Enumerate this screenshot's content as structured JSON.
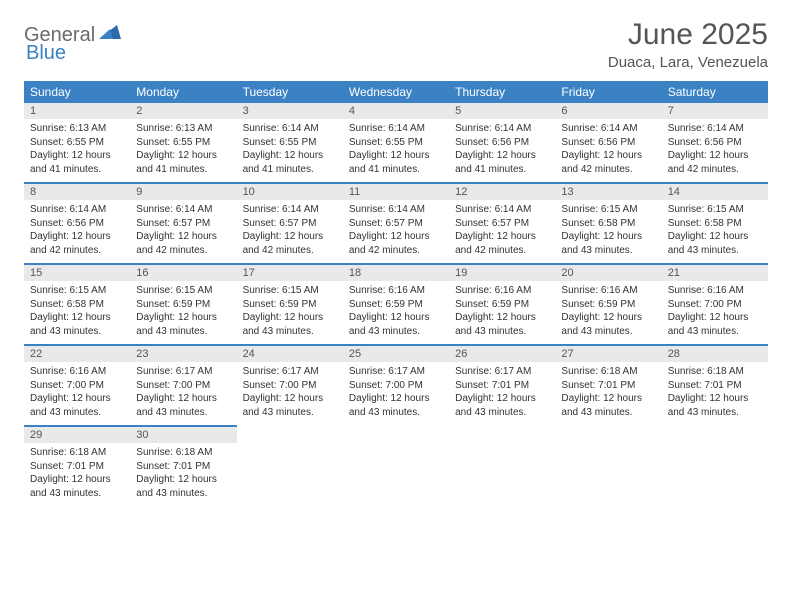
{
  "logo": {
    "text1": "General",
    "text2": "Blue"
  },
  "title": "June 2025",
  "location": "Duaca, Lara, Venezuela",
  "colors": {
    "header_bg": "#3b82c4",
    "header_text": "#ffffff",
    "daynum_bg": "#e9e9e9",
    "border": "#3b82c4",
    "title_color": "#555555",
    "body_text": "#333333"
  },
  "weekdays": [
    "Sunday",
    "Monday",
    "Tuesday",
    "Wednesday",
    "Thursday",
    "Friday",
    "Saturday"
  ],
  "weeks": [
    [
      {
        "n": "1",
        "sr": "Sunrise: 6:13 AM",
        "ss": "Sunset: 6:55 PM",
        "d1": "Daylight: 12 hours",
        "d2": "and 41 minutes."
      },
      {
        "n": "2",
        "sr": "Sunrise: 6:13 AM",
        "ss": "Sunset: 6:55 PM",
        "d1": "Daylight: 12 hours",
        "d2": "and 41 minutes."
      },
      {
        "n": "3",
        "sr": "Sunrise: 6:14 AM",
        "ss": "Sunset: 6:55 PM",
        "d1": "Daylight: 12 hours",
        "d2": "and 41 minutes."
      },
      {
        "n": "4",
        "sr": "Sunrise: 6:14 AM",
        "ss": "Sunset: 6:55 PM",
        "d1": "Daylight: 12 hours",
        "d2": "and 41 minutes."
      },
      {
        "n": "5",
        "sr": "Sunrise: 6:14 AM",
        "ss": "Sunset: 6:56 PM",
        "d1": "Daylight: 12 hours",
        "d2": "and 41 minutes."
      },
      {
        "n": "6",
        "sr": "Sunrise: 6:14 AM",
        "ss": "Sunset: 6:56 PM",
        "d1": "Daylight: 12 hours",
        "d2": "and 42 minutes."
      },
      {
        "n": "7",
        "sr": "Sunrise: 6:14 AM",
        "ss": "Sunset: 6:56 PM",
        "d1": "Daylight: 12 hours",
        "d2": "and 42 minutes."
      }
    ],
    [
      {
        "n": "8",
        "sr": "Sunrise: 6:14 AM",
        "ss": "Sunset: 6:56 PM",
        "d1": "Daylight: 12 hours",
        "d2": "and 42 minutes."
      },
      {
        "n": "9",
        "sr": "Sunrise: 6:14 AM",
        "ss": "Sunset: 6:57 PM",
        "d1": "Daylight: 12 hours",
        "d2": "and 42 minutes."
      },
      {
        "n": "10",
        "sr": "Sunrise: 6:14 AM",
        "ss": "Sunset: 6:57 PM",
        "d1": "Daylight: 12 hours",
        "d2": "and 42 minutes."
      },
      {
        "n": "11",
        "sr": "Sunrise: 6:14 AM",
        "ss": "Sunset: 6:57 PM",
        "d1": "Daylight: 12 hours",
        "d2": "and 42 minutes."
      },
      {
        "n": "12",
        "sr": "Sunrise: 6:14 AM",
        "ss": "Sunset: 6:57 PM",
        "d1": "Daylight: 12 hours",
        "d2": "and 42 minutes."
      },
      {
        "n": "13",
        "sr": "Sunrise: 6:15 AM",
        "ss": "Sunset: 6:58 PM",
        "d1": "Daylight: 12 hours",
        "d2": "and 43 minutes."
      },
      {
        "n": "14",
        "sr": "Sunrise: 6:15 AM",
        "ss": "Sunset: 6:58 PM",
        "d1": "Daylight: 12 hours",
        "d2": "and 43 minutes."
      }
    ],
    [
      {
        "n": "15",
        "sr": "Sunrise: 6:15 AM",
        "ss": "Sunset: 6:58 PM",
        "d1": "Daylight: 12 hours",
        "d2": "and 43 minutes."
      },
      {
        "n": "16",
        "sr": "Sunrise: 6:15 AM",
        "ss": "Sunset: 6:59 PM",
        "d1": "Daylight: 12 hours",
        "d2": "and 43 minutes."
      },
      {
        "n": "17",
        "sr": "Sunrise: 6:15 AM",
        "ss": "Sunset: 6:59 PM",
        "d1": "Daylight: 12 hours",
        "d2": "and 43 minutes."
      },
      {
        "n": "18",
        "sr": "Sunrise: 6:16 AM",
        "ss": "Sunset: 6:59 PM",
        "d1": "Daylight: 12 hours",
        "d2": "and 43 minutes."
      },
      {
        "n": "19",
        "sr": "Sunrise: 6:16 AM",
        "ss": "Sunset: 6:59 PM",
        "d1": "Daylight: 12 hours",
        "d2": "and 43 minutes."
      },
      {
        "n": "20",
        "sr": "Sunrise: 6:16 AM",
        "ss": "Sunset: 6:59 PM",
        "d1": "Daylight: 12 hours",
        "d2": "and 43 minutes."
      },
      {
        "n": "21",
        "sr": "Sunrise: 6:16 AM",
        "ss": "Sunset: 7:00 PM",
        "d1": "Daylight: 12 hours",
        "d2": "and 43 minutes."
      }
    ],
    [
      {
        "n": "22",
        "sr": "Sunrise: 6:16 AM",
        "ss": "Sunset: 7:00 PM",
        "d1": "Daylight: 12 hours",
        "d2": "and 43 minutes."
      },
      {
        "n": "23",
        "sr": "Sunrise: 6:17 AM",
        "ss": "Sunset: 7:00 PM",
        "d1": "Daylight: 12 hours",
        "d2": "and 43 minutes."
      },
      {
        "n": "24",
        "sr": "Sunrise: 6:17 AM",
        "ss": "Sunset: 7:00 PM",
        "d1": "Daylight: 12 hours",
        "d2": "and 43 minutes."
      },
      {
        "n": "25",
        "sr": "Sunrise: 6:17 AM",
        "ss": "Sunset: 7:00 PM",
        "d1": "Daylight: 12 hours",
        "d2": "and 43 minutes."
      },
      {
        "n": "26",
        "sr": "Sunrise: 6:17 AM",
        "ss": "Sunset: 7:01 PM",
        "d1": "Daylight: 12 hours",
        "d2": "and 43 minutes."
      },
      {
        "n": "27",
        "sr": "Sunrise: 6:18 AM",
        "ss": "Sunset: 7:01 PM",
        "d1": "Daylight: 12 hours",
        "d2": "and 43 minutes."
      },
      {
        "n": "28",
        "sr": "Sunrise: 6:18 AM",
        "ss": "Sunset: 7:01 PM",
        "d1": "Daylight: 12 hours",
        "d2": "and 43 minutes."
      }
    ],
    [
      {
        "n": "29",
        "sr": "Sunrise: 6:18 AM",
        "ss": "Sunset: 7:01 PM",
        "d1": "Daylight: 12 hours",
        "d2": "and 43 minutes."
      },
      {
        "n": "30",
        "sr": "Sunrise: 6:18 AM",
        "ss": "Sunset: 7:01 PM",
        "d1": "Daylight: 12 hours",
        "d2": "and 43 minutes."
      },
      null,
      null,
      null,
      null,
      null
    ]
  ]
}
